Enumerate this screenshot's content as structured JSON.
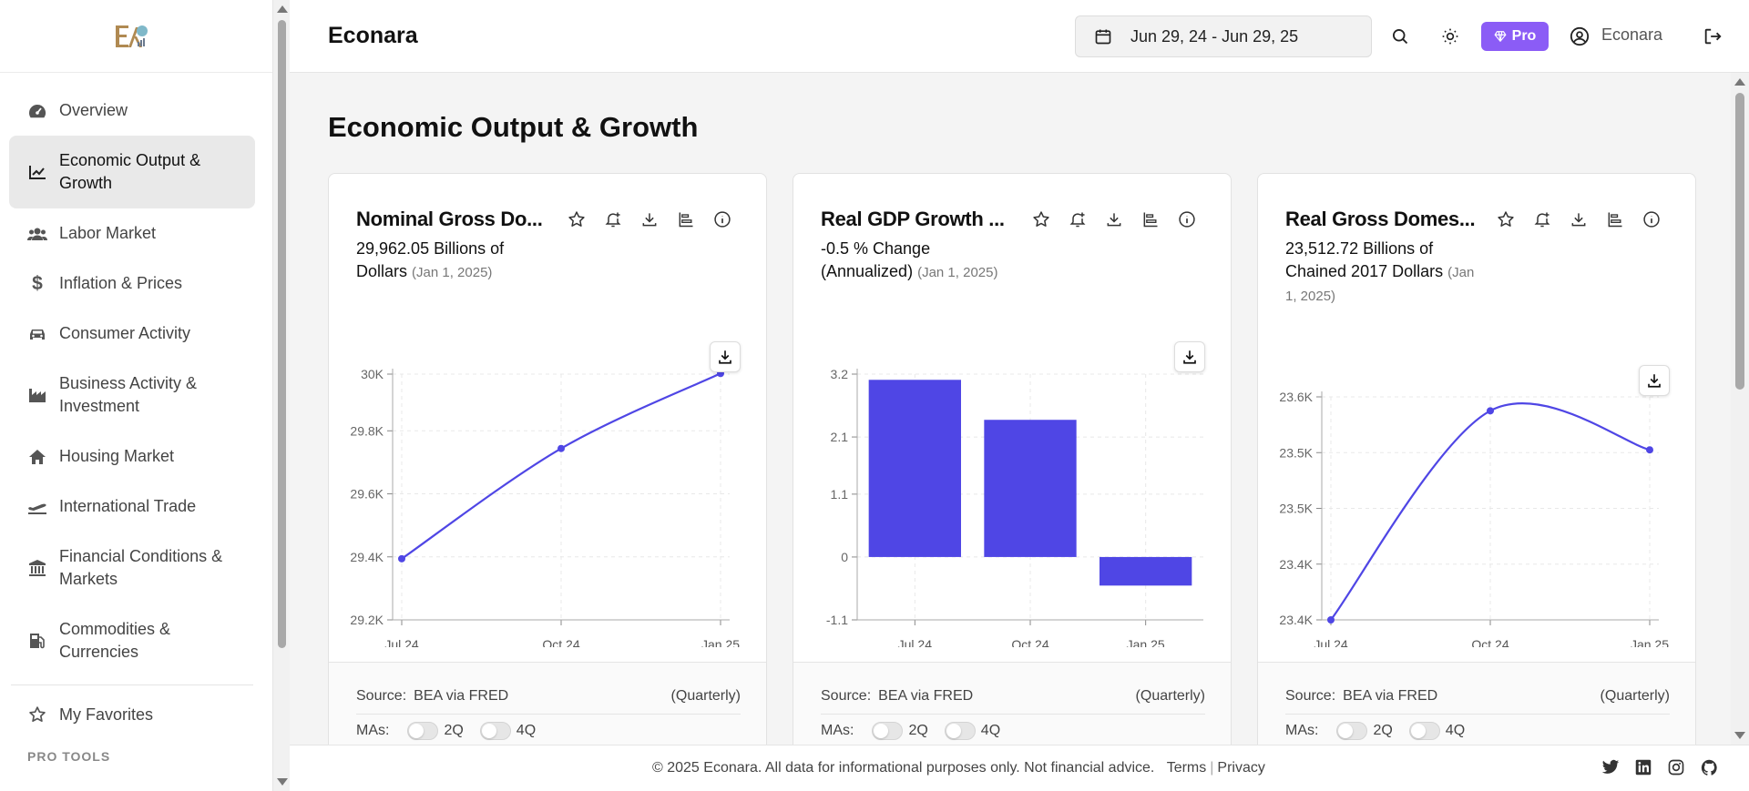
{
  "sidebar": {
    "items": [
      {
        "label": "Overview",
        "icon": "gauge-icon"
      },
      {
        "label": "Economic Output & Growth",
        "icon": "chart-line-icon",
        "active": true
      },
      {
        "label": "Labor Market",
        "icon": "users-icon"
      },
      {
        "label": "Inflation & Prices",
        "icon": "dollar-icon"
      },
      {
        "label": "Consumer Activity",
        "icon": "car-icon"
      },
      {
        "label": "Business Activity & Investment",
        "icon": "industry-icon"
      },
      {
        "label": "Housing Market",
        "icon": "house-icon"
      },
      {
        "label": "International Trade",
        "icon": "plane-icon"
      },
      {
        "label": "Financial Conditions & Markets",
        "icon": "bank-icon"
      },
      {
        "label": "Commodities & Currencies",
        "icon": "fuel-pump-icon"
      },
      {
        "label": "My Favorites",
        "icon": "star-icon"
      }
    ],
    "section_label": "PRO TOOLS"
  },
  "header": {
    "title": "Econara",
    "date_range": "Jun 29, 24 - Jun 29, 25",
    "pro_label": "Pro",
    "user_name": "Econara"
  },
  "main": {
    "page_title": "Economic Output & Growth",
    "cards": [
      {
        "title": "Nominal Gross Do...",
        "value": "29,962.05 Billions of Dollars",
        "date": "(Jan 1, 2025)",
        "source_label": "Source:",
        "source": "BEA via FRED",
        "frequency": "(Quarterly)",
        "ma_label": "MAs:",
        "ma_options": [
          "2Q",
          "4Q"
        ]
      },
      {
        "title": "Real GDP Growth ...",
        "value": "-0.5 % Change (Annualized)",
        "date": "(Jan 1, 2025)",
        "source_label": "Source:",
        "source": "BEA via FRED",
        "frequency": "(Quarterly)",
        "ma_label": "MAs:",
        "ma_options": [
          "2Q",
          "4Q"
        ]
      },
      {
        "title": "Real Gross Domes...",
        "value": "23,512.72 Billions of Chained 2017 Dollars",
        "date": "(Jan 1, 2025)",
        "source_label": "Source:",
        "source": "BEA via FRED",
        "frequency": "(Quarterly)",
        "ma_label": "MAs:",
        "ma_options": [
          "2Q",
          "4Q"
        ]
      }
    ]
  },
  "chart_data": [
    {
      "type": "line",
      "x": [
        "Jul 24",
        "Oct 24",
        "Jan 25"
      ],
      "values": [
        29374,
        29724,
        29962
      ],
      "ytick_labels": [
        "29.2K",
        "29.4K",
        "29.6K",
        "29.8K",
        "30K"
      ],
      "ytick_values": [
        29180,
        29380,
        29580,
        29780,
        29960
      ],
      "ylim": [
        29180,
        29960
      ],
      "grid": true,
      "color": "#4f46e5"
    },
    {
      "type": "bar",
      "categories": [
        "Jul 24",
        "Oct 24",
        "Jan 25"
      ],
      "values": [
        3.1,
        2.4,
        -0.5
      ],
      "ytick_labels": [
        "-1.1",
        "0",
        "1.1",
        "2.1",
        "3.2"
      ],
      "ytick_values": [
        -1.1,
        0,
        1.1,
        2.1,
        3.2
      ],
      "ylim": [
        -1.1,
        3.2
      ],
      "grid": true,
      "color": "#4f46e5"
    },
    {
      "type": "line",
      "x": [
        "Jul 24",
        "Oct 24",
        "Jan 25"
      ],
      "values": [
        23390,
        23540,
        23512
      ],
      "ytick_labels": [
        "23.4K",
        "23.4K",
        "23.5K",
        "23.5K",
        "23.6K"
      ],
      "ytick_values": [
        23390,
        23430,
        23470,
        23510,
        23550
      ],
      "ylim": [
        23390,
        23550
      ],
      "grid": true,
      "color": "#4f46e5"
    }
  ],
  "footer": {
    "text": "© 2025 Econara. All data for informational purposes only. Not financial advice.",
    "terms": "Terms",
    "privacy": "Privacy",
    "social": [
      "twitter-icon",
      "linkedin-icon",
      "instagram-icon",
      "github-icon"
    ]
  }
}
